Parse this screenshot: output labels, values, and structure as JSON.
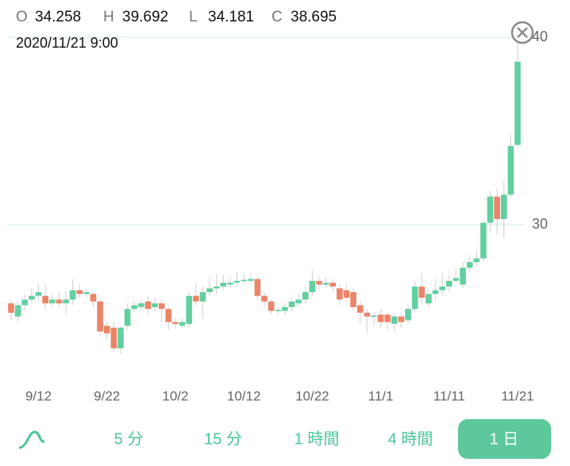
{
  "chart_data": {
    "type": "candlestick",
    "header": {
      "labels": [
        "O",
        "H",
        "L",
        "C"
      ],
      "date": "2020/11/21 9:00"
    },
    "categories": [
      null,
      null,
      null,
      null,
      "9/12",
      null,
      null,
      null,
      null,
      null,
      null,
      null,
      null,
      null,
      "9/22",
      null,
      null,
      null,
      null,
      null,
      null,
      null,
      null,
      null,
      "10/2",
      null,
      null,
      null,
      null,
      null,
      null,
      null,
      null,
      null,
      "10/12",
      null,
      null,
      null,
      null,
      null,
      null,
      null,
      null,
      null,
      "10/22",
      null,
      null,
      null,
      null,
      null,
      null,
      null,
      null,
      null,
      "11/1",
      null,
      null,
      null,
      null,
      null,
      null,
      null,
      null,
      null,
      "11/11",
      null,
      null,
      null,
      null,
      null,
      null,
      null,
      null,
      null,
      "11/21"
    ],
    "open": [
      25.8,
      25.1,
      25.7,
      26.0,
      26.2,
      26.2,
      25.8,
      26.0,
      25.8,
      26.0,
      26.5,
      26.3,
      26.3,
      25.9,
      24.6,
      24.5,
      23.4,
      24.6,
      25.5,
      25.6,
      25.9,
      25.6,
      25.8,
      25.5,
      24.8,
      24.6,
      24.7,
      26.2,
      25.9,
      26.4,
      26.6,
      26.7,
      26.8,
      26.9,
      27.0,
      27.0,
      27.1,
      26.2,
      25.9,
      25.4,
      25.4,
      25.6,
      25.8,
      26.0,
      26.4,
      27.0,
      26.8,
      26.9,
      26.6,
      26.5,
      26.4,
      25.7,
      25.3,
      25.1,
      25.2,
      25.2,
      24.7,
      25.1,
      24.9,
      25.5,
      26.7,
      25.8,
      26.3,
      26.5,
      26.7,
      27.0,
      26.8,
      27.7,
      28.0,
      28.2,
      30.1,
      31.5,
      30.3,
      31.6,
      34.258
    ],
    "high": [
      26.0,
      25.9,
      26.3,
      26.6,
      26.9,
      26.8,
      26.3,
      26.4,
      26.5,
      27.1,
      26.8,
      26.6,
      26.4,
      26.0,
      24.8,
      24.8,
      24.6,
      25.8,
      25.9,
      26.0,
      26.2,
      26.1,
      26.0,
      25.6,
      25.0,
      25.0,
      26.4,
      26.9,
      26.7,
      27.2,
      27.4,
      27.3,
      27.2,
      27.5,
      27.4,
      27.4,
      27.2,
      26.4,
      26.0,
      25.6,
      25.8,
      26.1,
      26.3,
      26.7,
      27.6,
      27.2,
      27.2,
      27.1,
      26.8,
      26.8,
      26.6,
      25.9,
      25.5,
      25.3,
      25.5,
      25.3,
      25.3,
      25.3,
      25.7,
      27.0,
      27.4,
      26.6,
      27.1,
      27.4,
      27.3,
      27.6,
      28.0,
      28.4,
      28.6,
      30.3,
      31.8,
      31.9,
      32.3,
      34.8,
      39.692
    ],
    "low": [
      24.9,
      24.8,
      25.4,
      25.8,
      25.9,
      25.5,
      25.6,
      25.6,
      25.2,
      25.7,
      26.1,
      26.1,
      25.6,
      24.1,
      23.9,
      23.2,
      23.1,
      24.4,
      25.3,
      25.4,
      25.2,
      25.4,
      24.8,
      24.4,
      24.5,
      24.5,
      24.5,
      25.7,
      25.0,
      26.2,
      26.3,
      26.5,
      26.6,
      26.7,
      26.8,
      26.8,
      26.0,
      25.6,
      25.2,
      25.2,
      25.2,
      25.4,
      25.6,
      25.8,
      26.2,
      26.5,
      26.6,
      26.4,
      25.8,
      25.9,
      25.4,
      24.7,
      24.2,
      24.6,
      24.5,
      24.4,
      24.3,
      24.5,
      24.7,
      25.3,
      25.8,
      25.6,
      26.0,
      26.3,
      26.4,
      26.9,
      26.6,
      27.5,
      27.8,
      28.0,
      29.6,
      29.5,
      29.3,
      31.5,
      34.181
    ],
    "close": [
      25.3,
      25.7,
      26.0,
      26.2,
      26.4,
      25.8,
      26.0,
      25.8,
      26.0,
      26.5,
      26.3,
      26.4,
      25.9,
      24.3,
      24.2,
      23.4,
      24.5,
      25.5,
      25.7,
      25.8,
      25.5,
      25.8,
      25.5,
      24.8,
      24.7,
      24.8,
      26.2,
      25.9,
      26.4,
      26.6,
      26.7,
      26.9,
      26.9,
      27.0,
      27.05,
      27.1,
      26.2,
      25.9,
      25.4,
      25.45,
      25.6,
      25.9,
      26.0,
      26.4,
      27.0,
      26.8,
      26.9,
      26.7,
      26.0,
      26.1,
      25.6,
      25.3,
      25.1,
      25.15,
      24.8,
      24.8,
      25.1,
      24.8,
      25.5,
      26.7,
      26.1,
      26.3,
      26.5,
      26.7,
      27.0,
      27.15,
      27.7,
      28.0,
      28.2,
      30.1,
      31.5,
      30.3,
      31.6,
      34.2,
      38.695
    ],
    "up_color": "#62cfa0",
    "down_color": "#ec8467",
    "ylim": [
      22,
      41
    ],
    "yticks": [
      30,
      40
    ],
    "grid": true
  },
  "tabs": [
    "5 分",
    "15 分",
    "1 時間",
    "4 時間",
    "1 日"
  ]
}
